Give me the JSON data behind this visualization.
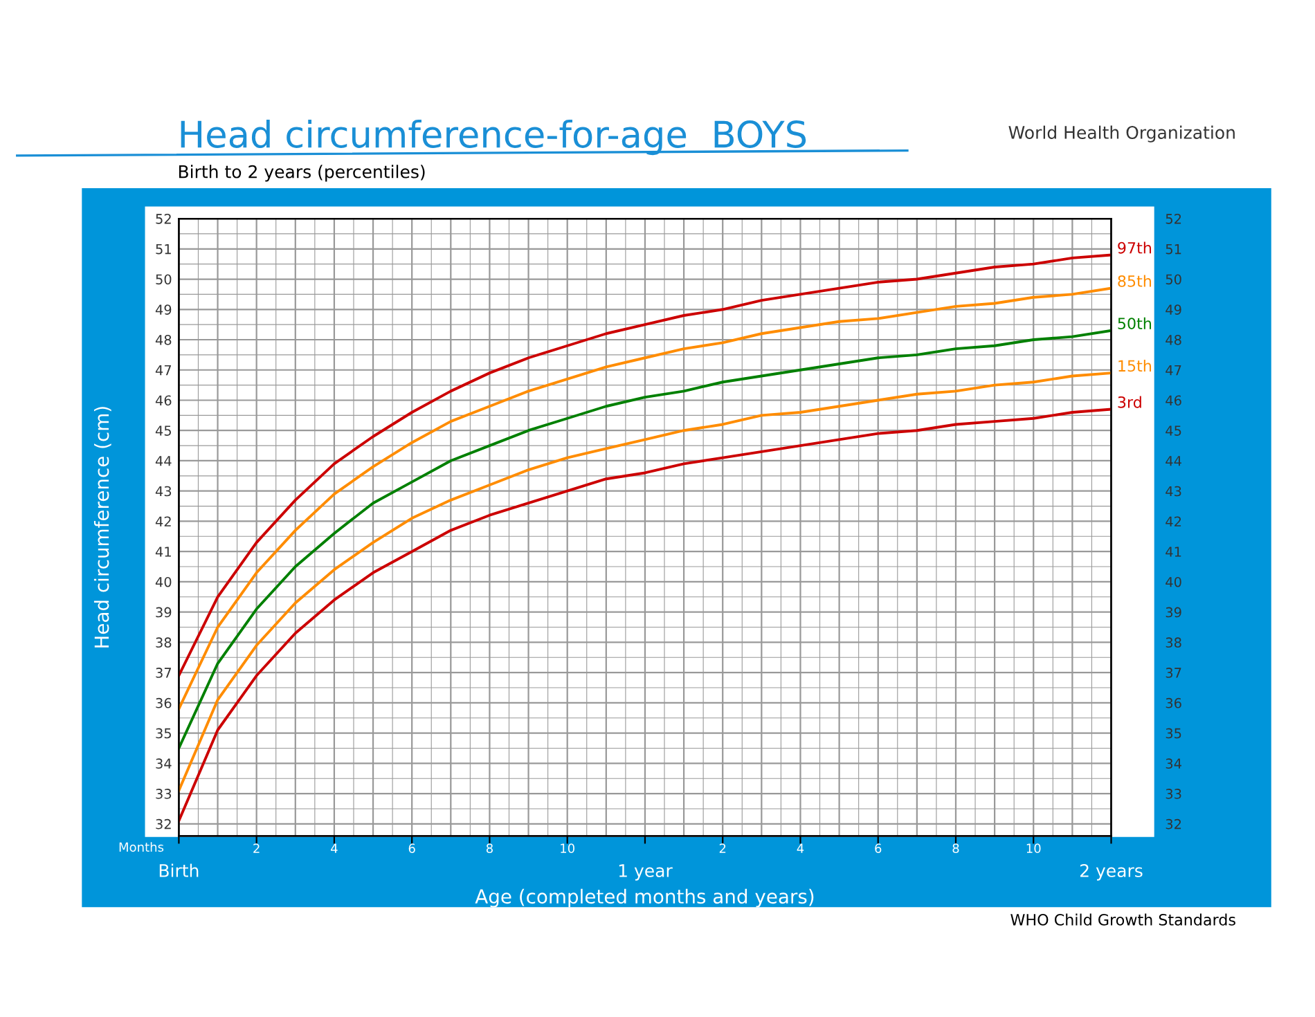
{
  "chart_data": {
    "type": "line",
    "title": "Head circumference-for-age  BOYS",
    "subtitle": "Birth to 2 years (percentiles)",
    "xlabel": "Age (completed months and years)",
    "ylabel": "Head circumference (cm)",
    "annotations": [
      "Months",
      "World Health Organization",
      "WHO Child Growth Standards"
    ],
    "categories": [
      "Birth",
      null,
      "2",
      null,
      "4",
      null,
      "6",
      null,
      "8",
      null,
      "10",
      null,
      "1 year",
      null,
      "2",
      null,
      "4",
      null,
      "6",
      null,
      "8",
      null,
      "10",
      null,
      "2 years"
    ],
    "series": [
      {
        "name": "97th",
        "color": "#cc0000",
        "values": [
          36.9,
          39.5,
          41.3,
          42.7,
          43.9,
          44.8,
          45.6,
          46.3,
          46.9,
          47.4,
          47.8,
          48.2,
          48.5,
          48.8,
          49.0,
          49.3,
          49.5,
          49.7,
          49.9,
          50.0,
          50.2,
          50.4,
          50.5,
          50.7,
          50.8
        ]
      },
      {
        "name": "85th",
        "color": "#ff8c00",
        "values": [
          35.8,
          38.5,
          40.3,
          41.7,
          42.9,
          43.8,
          44.6,
          45.3,
          45.8,
          46.3,
          46.7,
          47.1,
          47.4,
          47.7,
          47.9,
          48.2,
          48.4,
          48.6,
          48.7,
          48.9,
          49.1,
          49.2,
          49.4,
          49.5,
          49.7
        ]
      },
      {
        "name": "50th",
        "color": "#008000",
        "values": [
          34.5,
          37.3,
          39.1,
          40.5,
          41.6,
          42.6,
          43.3,
          44.0,
          44.5,
          45.0,
          45.4,
          45.8,
          46.1,
          46.3,
          46.6,
          46.8,
          47.0,
          47.2,
          47.4,
          47.5,
          47.7,
          47.8,
          48.0,
          48.1,
          48.3
        ]
      },
      {
        "name": "15th",
        "color": "#ff8c00",
        "values": [
          33.1,
          36.1,
          37.9,
          39.3,
          40.4,
          41.3,
          42.1,
          42.7,
          43.2,
          43.7,
          44.1,
          44.4,
          44.7,
          45.0,
          45.2,
          45.5,
          45.6,
          45.8,
          46.0,
          46.2,
          46.3,
          46.5,
          46.6,
          46.8,
          46.9
        ]
      },
      {
        "name": "3rd",
        "color": "#cc0000",
        "values": [
          32.1,
          35.1,
          36.9,
          38.3,
          39.4,
          40.3,
          41.0,
          41.7,
          42.2,
          42.6,
          43.0,
          43.4,
          43.6,
          43.9,
          44.1,
          44.3,
          44.5,
          44.7,
          44.9,
          45.0,
          45.2,
          45.3,
          45.4,
          45.6,
          45.7
        ]
      }
    ],
    "ylim": [
      31.6,
      52
    ],
    "yticks": [
      32,
      33,
      34,
      35,
      36,
      37,
      38,
      39,
      40,
      41,
      42,
      43,
      44,
      45,
      46,
      47,
      48,
      49,
      50,
      51,
      52
    ],
    "y2lim": [
      31.6,
      52
    ],
    "y2ticks": [
      32,
      33,
      34,
      35,
      36,
      37,
      38,
      39,
      40,
      41,
      42,
      43,
      44,
      45,
      46,
      47,
      48,
      49,
      50,
      51,
      52
    ],
    "grid": true,
    "legend": false,
    "marker": "none",
    "line_style": "solid"
  }
}
